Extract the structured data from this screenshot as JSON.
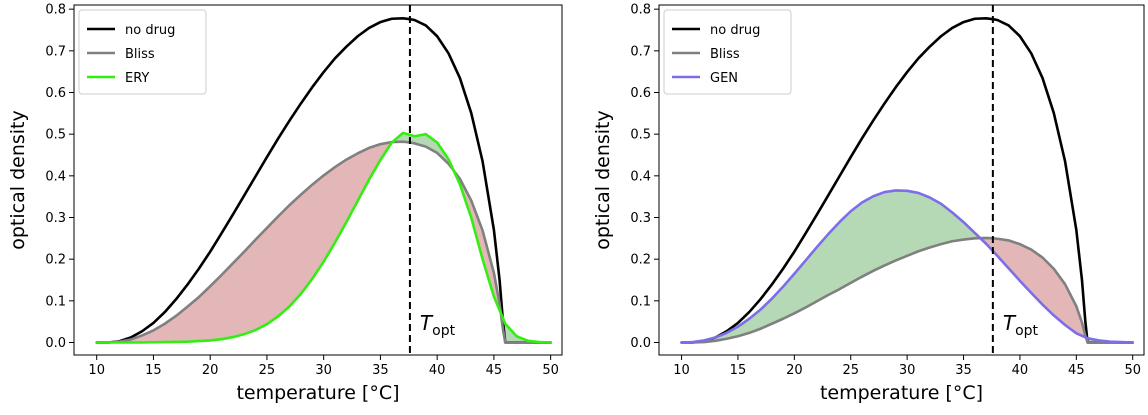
{
  "chart_data": [
    {
      "type": "line",
      "xlabel": "temperature [°C]",
      "ylabel": "optical density",
      "xlim": [
        8,
        51
      ],
      "ylim": [
        -0.03,
        0.81
      ],
      "xticks": [
        10,
        15,
        20,
        25,
        30,
        35,
        40,
        45,
        50
      ],
      "yticks": [
        0.0,
        0.1,
        0.2,
        0.3,
        0.4,
        0.5,
        0.6,
        0.7,
        0.8
      ],
      "legend_position": "top-left",
      "vline_x": 37.6,
      "annotation": {
        "main": "T",
        "sub": "opt"
      },
      "fill_colors": {
        "drug_below_bliss": "#e3b7b7",
        "drug_above_bliss": "#b5d9b5"
      },
      "series": [
        {
          "name": "no drug",
          "color": "#000000",
          "x": [
            10,
            11,
            12,
            13,
            14,
            15,
            16,
            17,
            18,
            19,
            20,
            21,
            22,
            23,
            24,
            25,
            26,
            27,
            28,
            29,
            30,
            31,
            32,
            33,
            34,
            35,
            36,
            37,
            37.6,
            38,
            39,
            40,
            41,
            42,
            43,
            44,
            45,
            45.5,
            45.8,
            46,
            47,
            48,
            49,
            50
          ],
          "y": [
            0.0,
            0.0,
            0.003,
            0.012,
            0.027,
            0.047,
            0.073,
            0.104,
            0.139,
            0.177,
            0.218,
            0.262,
            0.307,
            0.353,
            0.399,
            0.445,
            0.49,
            0.533,
            0.574,
            0.613,
            0.649,
            0.682,
            0.71,
            0.735,
            0.755,
            0.769,
            0.777,
            0.778,
            0.776,
            0.774,
            0.761,
            0.735,
            0.694,
            0.635,
            0.551,
            0.435,
            0.27,
            0.15,
            0.05,
            0.0,
            0.0,
            0.0,
            0.0,
            0.0
          ]
        },
        {
          "name": "Bliss",
          "color": "#808080",
          "x": [
            10,
            11,
            12,
            13,
            14,
            15,
            16,
            17,
            18,
            19,
            20,
            21,
            22,
            23,
            24,
            25,
            26,
            27,
            28,
            29,
            30,
            31,
            32,
            33,
            34,
            35,
            36,
            37,
            37.6,
            38,
            39,
            40,
            41,
            42,
            43,
            44,
            45,
            45.5,
            45.8,
            46,
            47,
            48,
            49,
            50
          ],
          "y": [
            0.0,
            0.0,
            0.002,
            0.007,
            0.017,
            0.029,
            0.045,
            0.064,
            0.086,
            0.109,
            0.135,
            0.162,
            0.19,
            0.218,
            0.247,
            0.275,
            0.303,
            0.33,
            0.355,
            0.379,
            0.401,
            0.421,
            0.439,
            0.454,
            0.467,
            0.476,
            0.481,
            0.482,
            0.48,
            0.478,
            0.47,
            0.455,
            0.429,
            0.393,
            0.341,
            0.269,
            0.167,
            0.093,
            0.031,
            0.0,
            0.0,
            0.0,
            0.0,
            0.0
          ]
        },
        {
          "name": "ERY",
          "color": "#33ee11",
          "x": [
            10,
            12,
            14,
            16,
            18,
            20,
            21,
            22,
            23,
            24,
            25,
            26,
            27,
            28,
            29,
            30,
            31,
            32,
            33,
            34,
            35,
            36,
            37,
            38,
            39,
            40,
            41,
            42,
            43,
            44,
            45,
            46,
            47,
            48,
            49,
            50
          ],
          "y": [
            0.0,
            0.0,
            0.0,
            0.001,
            0.002,
            0.005,
            0.008,
            0.013,
            0.02,
            0.03,
            0.044,
            0.063,
            0.087,
            0.117,
            0.153,
            0.194,
            0.24,
            0.289,
            0.34,
            0.391,
            0.438,
            0.48,
            0.503,
            0.495,
            0.5,
            0.48,
            0.44,
            0.38,
            0.3,
            0.2,
            0.11,
            0.045,
            0.015,
            0.004,
            0.001,
            0.0
          ]
        }
      ]
    },
    {
      "type": "line",
      "xlabel": "temperature [°C]",
      "ylabel": "optical density",
      "xlim": [
        8,
        51
      ],
      "ylim": [
        -0.03,
        0.81
      ],
      "xticks": [
        10,
        15,
        20,
        25,
        30,
        35,
        40,
        45,
        50
      ],
      "yticks": [
        0.0,
        0.1,
        0.2,
        0.3,
        0.4,
        0.5,
        0.6,
        0.7,
        0.8
      ],
      "legend_position": "top-left",
      "vline_x": 37.6,
      "annotation": {
        "main": "T",
        "sub": "opt"
      },
      "fill_colors": {
        "drug_below_bliss": "#e3b7b7",
        "drug_above_bliss": "#b5d9b5"
      },
      "series": [
        {
          "name": "no drug",
          "color": "#000000",
          "x": [
            10,
            11,
            12,
            13,
            14,
            15,
            16,
            17,
            18,
            19,
            20,
            21,
            22,
            23,
            24,
            25,
            26,
            27,
            28,
            29,
            30,
            31,
            32,
            33,
            34,
            35,
            36,
            37,
            37.6,
            38,
            39,
            40,
            41,
            42,
            43,
            44,
            45,
            45.5,
            45.8,
            46,
            47,
            48,
            49,
            50
          ],
          "y": [
            0.0,
            0.0,
            0.003,
            0.012,
            0.027,
            0.047,
            0.073,
            0.104,
            0.139,
            0.177,
            0.218,
            0.262,
            0.307,
            0.353,
            0.399,
            0.445,
            0.49,
            0.533,
            0.574,
            0.613,
            0.649,
            0.682,
            0.71,
            0.735,
            0.755,
            0.769,
            0.777,
            0.778,
            0.776,
            0.774,
            0.761,
            0.735,
            0.694,
            0.635,
            0.551,
            0.435,
            0.27,
            0.15,
            0.05,
            0.0,
            0.0,
            0.0,
            0.0,
            0.0
          ]
        },
        {
          "name": "Bliss",
          "color": "#808080",
          "x": [
            10,
            11,
            12,
            13,
            14,
            15,
            16,
            17,
            18,
            19,
            20,
            21,
            22,
            23,
            24,
            25,
            26,
            27,
            28,
            29,
            30,
            31,
            32,
            33,
            34,
            35,
            36,
            37,
            37.6,
            38,
            39,
            40,
            41,
            42,
            43,
            44,
            45,
            45.5,
            45.8,
            46,
            47,
            48,
            49,
            50
          ],
          "y": [
            0.0,
            0.0,
            0.001,
            0.004,
            0.009,
            0.015,
            0.023,
            0.033,
            0.045,
            0.057,
            0.07,
            0.084,
            0.099,
            0.114,
            0.128,
            0.143,
            0.158,
            0.172,
            0.185,
            0.197,
            0.208,
            0.219,
            0.228,
            0.236,
            0.243,
            0.247,
            0.25,
            0.251,
            0.25,
            0.249,
            0.245,
            0.236,
            0.223,
            0.204,
            0.177,
            0.14,
            0.087,
            0.048,
            0.016,
            0.0,
            0.0,
            0.0,
            0.0,
            0.0
          ]
        },
        {
          "name": "GEN",
          "color": "#7b6ee8",
          "x": [
            10,
            11,
            12,
            13,
            14,
            15,
            16,
            17,
            18,
            19,
            20,
            21,
            22,
            23,
            24,
            25,
            26,
            27,
            28,
            29,
            30,
            31,
            32,
            33,
            34,
            35,
            36,
            37,
            38,
            39,
            40,
            41,
            42,
            43,
            44,
            45,
            46,
            47,
            48,
            49,
            50
          ],
          "y": [
            0.0,
            0.001,
            0.005,
            0.012,
            0.023,
            0.038,
            0.057,
            0.079,
            0.105,
            0.134,
            0.165,
            0.197,
            0.229,
            0.26,
            0.289,
            0.315,
            0.336,
            0.351,
            0.361,
            0.365,
            0.364,
            0.359,
            0.348,
            0.333,
            0.312,
            0.289,
            0.263,
            0.237,
            0.208,
            0.178,
            0.148,
            0.119,
            0.091,
            0.065,
            0.042,
            0.022,
            0.01,
            0.005,
            0.002,
            0.001,
            0.0
          ]
        }
      ]
    }
  ]
}
